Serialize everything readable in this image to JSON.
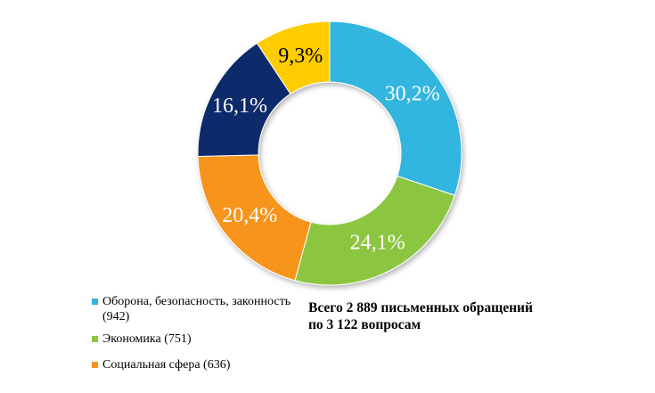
{
  "chart_data": {
    "type": "pie",
    "donut": true,
    "categories": [
      "Оборона, безопасность, законность (942)",
      "Экономика (751)",
      "Социальная сфера (636)",
      "",
      ""
    ],
    "values": [
      30.2,
      24.1,
      20.4,
      16.1,
      9.3
    ],
    "labels": [
      "30,2%",
      "24,1%",
      "20,4%",
      "16,1%",
      "9,3%"
    ],
    "colors": [
      "#33b5df",
      "#8cc63f",
      "#f7941d",
      "#102a6b",
      "#ffcc00"
    ],
    "legend_placement": "bottom-left"
  },
  "legend": {
    "items": [
      {
        "name": "Оборона, безопасность, законность",
        "count": "(942)",
        "color": "#33b5df"
      },
      {
        "name": "Экономика (751)",
        "color": "#8cc63f"
      },
      {
        "name": "Социальная сфера (636)",
        "color": "#f7941d"
      }
    ]
  },
  "summary": {
    "line1": "Всего 2 889 письменных обращений",
    "line2": "по 3 122 вопросам"
  }
}
